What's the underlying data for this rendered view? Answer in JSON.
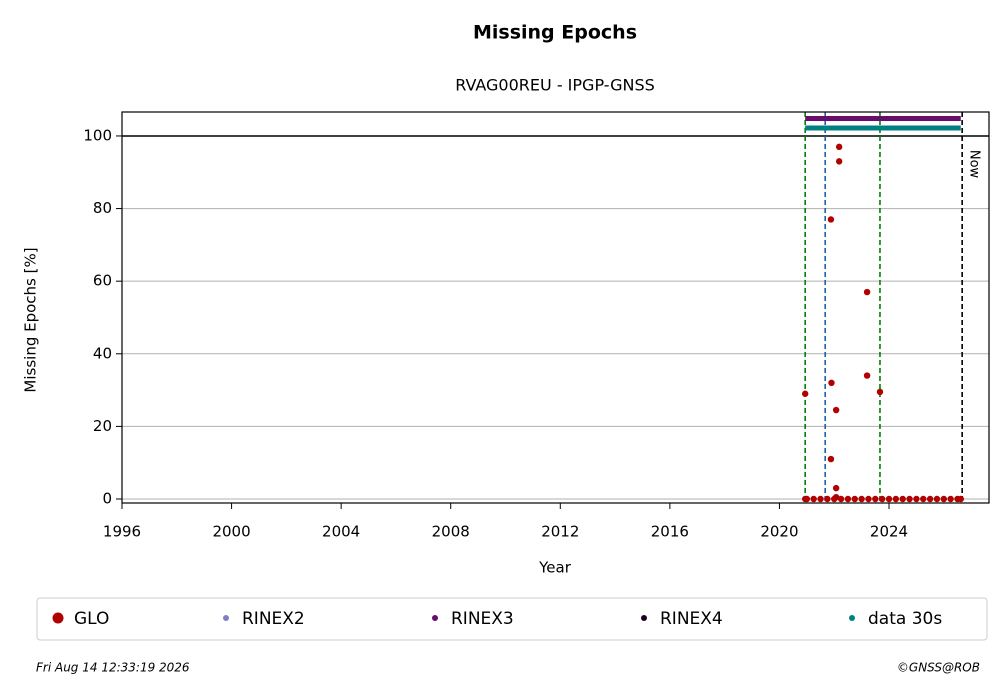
{
  "chart_data": {
    "type": "scatter",
    "title": "Missing Epochs",
    "subtitle": "RVAG00REU - IPGP-GNSS",
    "xlabel": "Year",
    "ylabel": "Missing Epochs [%]",
    "xlim": [
      1996,
      2027.65
    ],
    "ylim": [
      -1.1,
      106.6
    ],
    "xticks": [
      1996,
      2000,
      2004,
      2008,
      2012,
      2016,
      2020,
      2024
    ],
    "yticks": [
      0,
      20,
      40,
      60,
      80,
      100
    ],
    "grid": "y",
    "hline": 100,
    "series": [
      {
        "name": "GLO",
        "color": "#b00000",
        "style": "points",
        "x": [
          2020.94,
          2021.88,
          2021.9,
          2021.88,
          2022.07,
          2022.07,
          2022.07,
          2022.18,
          2022.18,
          2023.2,
          2023.2,
          2023.67,
          2020.94,
          2021.0,
          2021.25,
          2021.5,
          2021.75,
          2022.0,
          2022.25,
          2022.5,
          2022.75,
          2023.0,
          2023.25,
          2023.5,
          2023.75,
          2024.0,
          2024.25,
          2024.5,
          2024.75,
          2025.0,
          2025.25,
          2025.5,
          2025.75,
          2026.0,
          2026.25,
          2026.5,
          2026.62
        ],
        "values": [
          29,
          77,
          32,
          11,
          24.5,
          3,
          0.5,
          97,
          93,
          57,
          34,
          29.5,
          0,
          0,
          0,
          0,
          0,
          0,
          0,
          0,
          0,
          0,
          0,
          0,
          0,
          0,
          0,
          0,
          0,
          0,
          0,
          0,
          0,
          0,
          0,
          0,
          0
        ]
      },
      {
        "name": "RINEX2",
        "color": "#8080c0",
        "style": "points",
        "x": [],
        "values": []
      },
      {
        "name": "RINEX3",
        "color": "#6a0d6a",
        "style": "band",
        "x": [
          2020.94,
          2026.62
        ],
        "values": [
          104.8,
          104.8
        ]
      },
      {
        "name": "RINEX4",
        "color": "#200020",
        "style": "points",
        "x": [],
        "values": []
      },
      {
        "name": "data 30s",
        "color": "#008080",
        "style": "band",
        "x": [
          2020.94,
          2026.62
        ],
        "values": [
          102.2,
          102.2
        ]
      }
    ],
    "vlines": [
      {
        "x": 2020.94,
        "color": "#008000"
      },
      {
        "x": 2021.67,
        "color": "#1f5fa8"
      },
      {
        "x": 2023.67,
        "color": "#008000"
      },
      {
        "x": 2026.67,
        "color": "#000000",
        "label": "Now"
      }
    ],
    "footer_left": "Fri Aug 14 12:33:19 2026",
    "footer_right": "©GNSS@ROB"
  }
}
